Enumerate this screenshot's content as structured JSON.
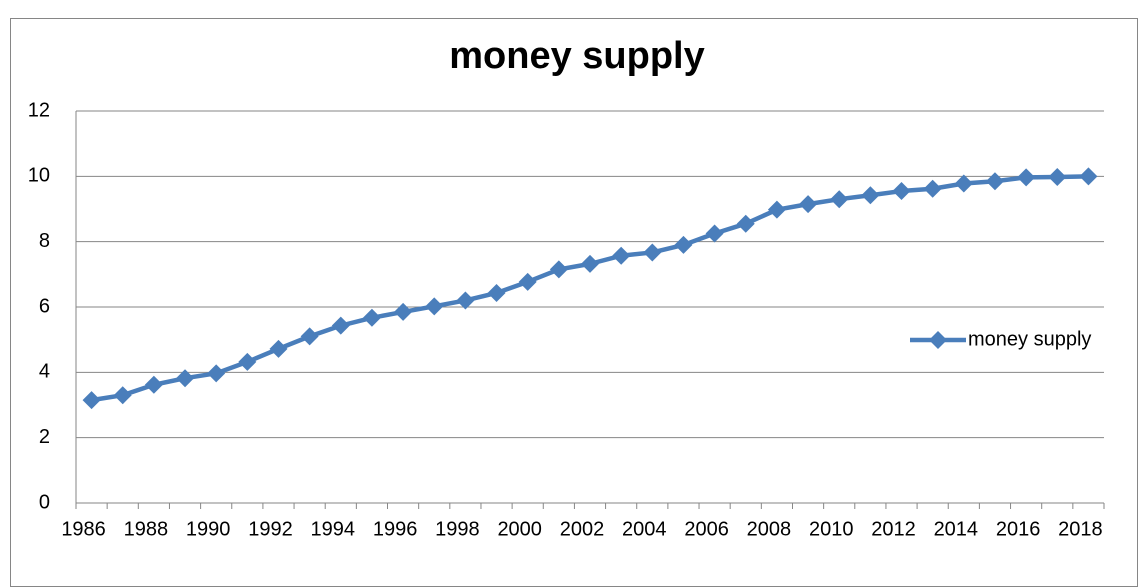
{
  "chart_data": {
    "type": "line",
    "title": "money supply",
    "categories": [
      "1986",
      null,
      "1988",
      null,
      "1990",
      null,
      "1992",
      null,
      "1994",
      null,
      "1996",
      null,
      "1998",
      null,
      "2000",
      null,
      "2002",
      null,
      "2004",
      null,
      "2006",
      null,
      "2008",
      null,
      "2010",
      null,
      "2012",
      null,
      "2014",
      null,
      "2016",
      null,
      "2018"
    ],
    "series": [
      {
        "name": "money supply",
        "color": "#4a7ebb",
        "values": [
          3.15,
          3.3,
          3.62,
          3.82,
          3.97,
          4.32,
          4.72,
          5.1,
          5.43,
          5.67,
          5.85,
          6.02,
          6.2,
          6.43,
          6.77,
          7.15,
          7.32,
          7.57,
          7.67,
          7.9,
          8.25,
          8.55,
          8.98,
          9.15,
          9.3,
          9.42,
          9.55,
          9.62,
          9.78,
          9.85,
          9.97,
          9.98,
          10.0
        ]
      }
    ],
    "ylim": [
      0,
      12
    ],
    "yticks": [
      0,
      2,
      4,
      6,
      8,
      10,
      12
    ],
    "grid": true,
    "legend": "right"
  }
}
